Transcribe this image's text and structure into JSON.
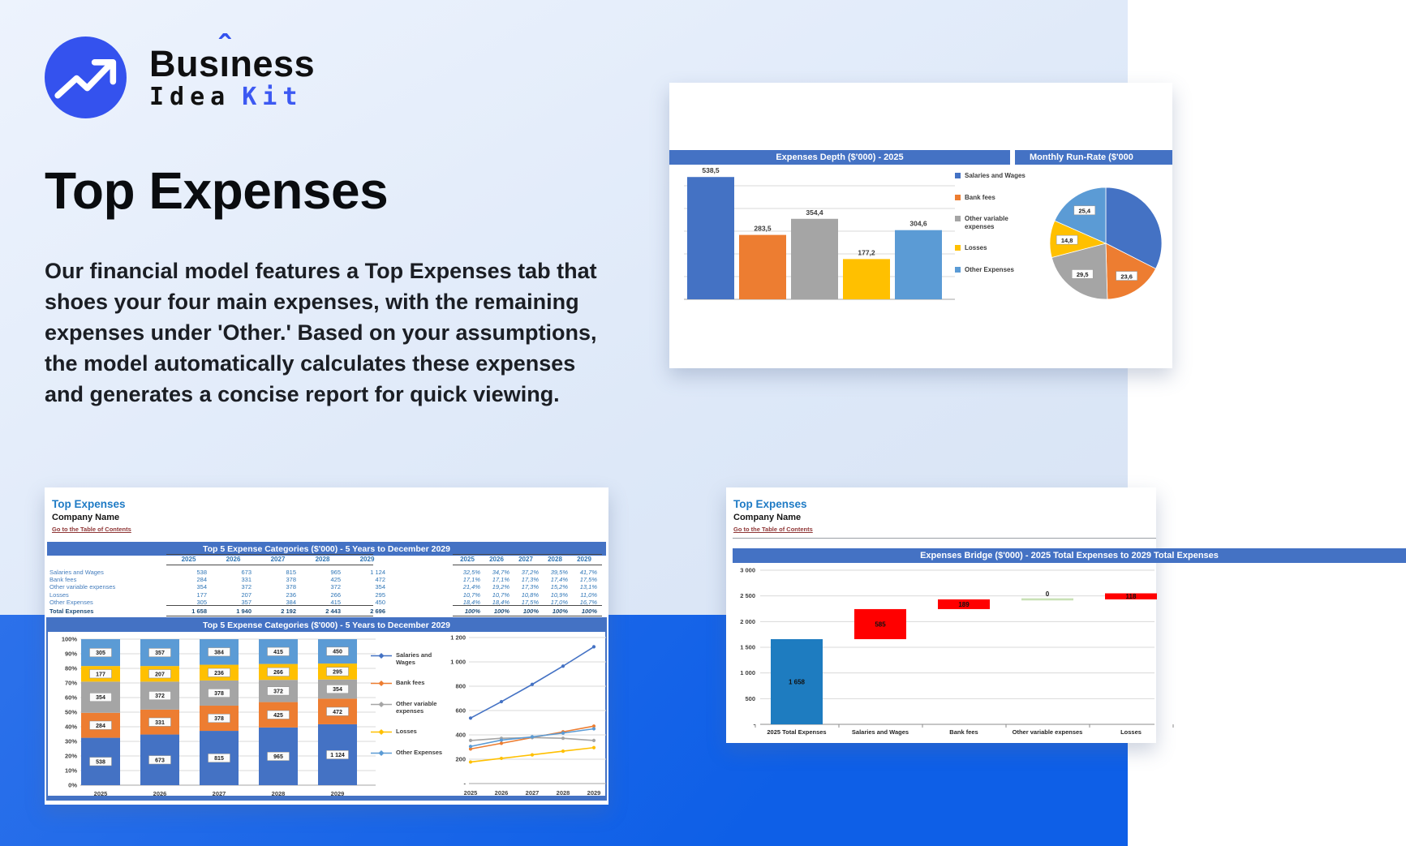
{
  "brand": {
    "line1_pre": "Bus",
    "line1_i": "ı",
    "line1_accent": "ˆ",
    "line1_post": "ness",
    "line2_black": "Idea",
    "line2_blue": "Kit"
  },
  "hero": {
    "title": "Top Expenses",
    "description": "Our financial model features a Top Expenses tab that shoes your four main expenses, with the remaining expenses under 'Other.' Based on your assumptions, the model automatically calculates these expenses and generates a concise report for quick viewing."
  },
  "legend_items": [
    "Salaries and Wages",
    "Bank fees",
    "Other variable expenses",
    "Losses",
    "Other Expenses"
  ],
  "series_colors": [
    "#4472C4",
    "#ED7D31",
    "#A5A5A5",
    "#FFC000",
    "#5B9BD5"
  ],
  "card_depth": {
    "header_left": "Expenses Depth ($'000) - 2025",
    "header_right": "Monthly Run-Rate ($'000"
  },
  "card_top5": {
    "sheet_title": "Top Expenses",
    "company_name": "Company Name",
    "toc_link": "Go to the Table of Contents",
    "section_title": "Top 5 Expense Categories ($'000) - 5 Years to December 2029",
    "chart_section_title": "Top 5 Expense Categories ($'000) - 5 Years to December 2029",
    "years": [
      "2025",
      "2026",
      "2027",
      "2028",
      "2029"
    ],
    "rows": [
      {
        "label": "Salaries and Wages",
        "values": [
          "538",
          "673",
          "815",
          "965",
          "1 124"
        ],
        "pct": [
          "32,5%",
          "34,7%",
          "37,2%",
          "39,5%",
          "41,7%"
        ]
      },
      {
        "label": "Bank fees",
        "values": [
          "284",
          "331",
          "378",
          "425",
          "472"
        ],
        "pct": [
          "17,1%",
          "17,1%",
          "17,3%",
          "17,4%",
          "17,5%"
        ]
      },
      {
        "label": "Other variable expenses",
        "values": [
          "354",
          "372",
          "378",
          "372",
          "354"
        ],
        "pct": [
          "21,4%",
          "19,2%",
          "17,3%",
          "15,2%",
          "13,1%"
        ]
      },
      {
        "label": "Losses",
        "values": [
          "177",
          "207",
          "236",
          "266",
          "295"
        ],
        "pct": [
          "10,7%",
          "10,7%",
          "10,8%",
          "10,9%",
          "11,0%"
        ]
      },
      {
        "label": "Other Expenses",
        "values": [
          "305",
          "357",
          "384",
          "415",
          "450"
        ],
        "pct": [
          "18,4%",
          "18,4%",
          "17,5%",
          "17,0%",
          "16,7%"
        ]
      }
    ],
    "total_row": {
      "label": "Total Expenses",
      "values": [
        "1 658",
        "1 940",
        "2 192",
        "2 443",
        "2 696"
      ],
      "pct": [
        "100%",
        "100%",
        "100%",
        "100%",
        "100%"
      ]
    }
  },
  "card_bridge": {
    "sheet_title": "Top Expenses",
    "company_name": "Company Name",
    "toc_link": "Go to the Table of Contents",
    "section_title": "Expenses Bridge ($'000) - 2025 Total Expenses to 2029 Total Expenses"
  },
  "chart_data": [
    {
      "id": "expenses_depth",
      "type": "bar",
      "title": "Expenses Depth ($'000) - 2025",
      "categories": [
        "Salaries and Wages",
        "Bank fees",
        "Other variable expenses",
        "Losses",
        "Other Expenses"
      ],
      "values": [
        538.5,
        283.5,
        354.4,
        177.2,
        304.6
      ],
      "labels": [
        "538,5",
        "283,5",
        "354,4",
        "177,2",
        "304,6"
      ],
      "ylim": [
        0,
        600
      ],
      "grid_step": 100,
      "grid": true,
      "legend_position": "right"
    },
    {
      "id": "monthly_run_rate",
      "type": "pie",
      "title": "Monthly Run-Rate ($'000",
      "labels": [
        "Salaries and Wages",
        "Bank fees",
        "Other variable expenses",
        "Losses",
        "Other Expenses"
      ],
      "values": [
        44.9,
        23.6,
        29.5,
        14.8,
        25.4
      ],
      "slice_labels": [
        "",
        "23,6",
        "29,5",
        "14,8",
        "25,4"
      ]
    },
    {
      "id": "top5_stacked_100pct",
      "type": "bar",
      "variant": "stacked-100",
      "title": "Top 5 Expense Categories ($'000) - 5 Years to December 2029",
      "categories": [
        "2025",
        "2026",
        "2027",
        "2028",
        "2029"
      ],
      "series": [
        {
          "name": "Salaries and Wages",
          "values": [
            538,
            673,
            815,
            965,
            1124
          ],
          "labels": [
            "538",
            "673",
            "815",
            "965",
            "1 124"
          ]
        },
        {
          "name": "Bank fees",
          "values": [
            284,
            331,
            378,
            425,
            472
          ],
          "labels": [
            "284",
            "331",
            "378",
            "425",
            "472"
          ]
        },
        {
          "name": "Other variable expenses",
          "values": [
            354,
            372,
            378,
            372,
            354
          ],
          "labels": [
            "354",
            "372",
            "378",
            "372",
            "354"
          ]
        },
        {
          "name": "Losses",
          "values": [
            177,
            207,
            236,
            266,
            295
          ],
          "labels": [
            "177",
            "207",
            "236",
            "266",
            "295"
          ]
        },
        {
          "name": "Other Expenses",
          "values": [
            305,
            357,
            384,
            415,
            450
          ],
          "labels": [
            "305",
            "357",
            "384",
            "415",
            "450"
          ]
        }
      ],
      "y_ticks": [
        "0%",
        "10%",
        "20%",
        "30%",
        "40%",
        "50%",
        "60%",
        "70%",
        "80%",
        "90%",
        "100%"
      ],
      "legend_position": "right"
    },
    {
      "id": "top5_lines",
      "type": "line",
      "x": [
        "2025",
        "2026",
        "2027",
        "2028",
        "2029"
      ],
      "series": [
        {
          "name": "Salaries and Wages",
          "values": [
            538,
            673,
            815,
            965,
            1124
          ]
        },
        {
          "name": "Bank fees",
          "values": [
            284,
            331,
            378,
            425,
            472
          ]
        },
        {
          "name": "Other variable expenses",
          "values": [
            354,
            372,
            378,
            372,
            354
          ]
        },
        {
          "name": "Losses",
          "values": [
            177,
            207,
            236,
            266,
            295
          ]
        },
        {
          "name": "Other Expenses",
          "values": [
            305,
            357,
            384,
            415,
            450
          ]
        }
      ],
      "ylim": [
        0,
        1200
      ],
      "y_tick_labels": [
        "-",
        "200",
        "400",
        "600",
        "800",
        "1 000",
        "1 200"
      ],
      "grid": true
    },
    {
      "id": "expenses_bridge",
      "type": "waterfall",
      "title": "Expenses Bridge ($'000) - 2025 Total Expenses to 2029 Total Expenses",
      "categories": [
        "2025 Total Expenses",
        "Salaries and Wages",
        "Bank fees",
        "Other variable expenses",
        "Losses"
      ],
      "bars": [
        {
          "label": "1 658",
          "value": 1658,
          "kind": "total"
        },
        {
          "label": "585",
          "value": 585,
          "kind": "increase"
        },
        {
          "label": "189",
          "value": 189,
          "kind": "increase"
        },
        {
          "label": "0",
          "value": 0,
          "kind": "zero"
        },
        {
          "label": "118",
          "value": 118,
          "kind": "increase"
        }
      ],
      "ylim": [
        0,
        3000
      ],
      "y_tick_labels": [
        "-",
        "500",
        "1 000",
        "1 500",
        "2 000",
        "2 500",
        "3 000"
      ],
      "colors": {
        "total": "#1E7CC0",
        "increase": "#FF0000",
        "zero_connector": "#C9E1B6"
      }
    }
  ]
}
